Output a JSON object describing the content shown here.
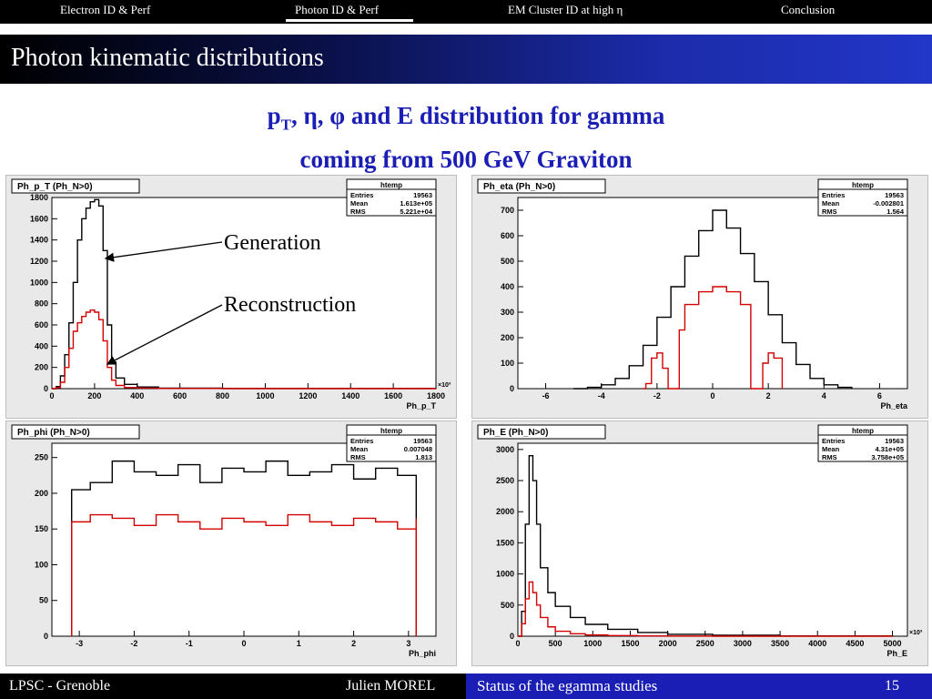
{
  "nav": {
    "items": [
      "Electron ID & Perf",
      "Photon ID & Perf",
      "EM Cluster ID at high η",
      "Conclusion"
    ],
    "active_index": 1
  },
  "slide": {
    "title": "Photon kinematic distributions",
    "heading_line1_prefix": "p",
    "heading_line1_sub": "T",
    "heading_line1_suffix": ", η, φ and E distribution for gamma",
    "heading_line2": "coming from 500 GeV Graviton"
  },
  "annotations": {
    "generation": "Generation",
    "reconstruction": "Reconstruction"
  },
  "footer": {
    "lab": "LPSC - Grenoble",
    "author": "Julien MOREL",
    "talk": "Status of the egamma studies",
    "page": "15"
  },
  "colors": {
    "accent": "#1b1eb5",
    "generation": "#000000",
    "reconstruction": "#d40000",
    "panel_bg": "#e9e9e9"
  },
  "chart_data": [
    {
      "type": "line",
      "title": "Ph_p_T (Ph_N>0)",
      "xlabel": "Ph_p_T",
      "x_exponent": "×10³",
      "stats": {
        "name": "htemp",
        "Entries": "19563",
        "Mean": "1.613e+05",
        "RMS": "5.221e+04"
      },
      "xlim": [
        0,
        1800
      ],
      "ylim": [
        0,
        1800
      ],
      "xticks": [
        0,
        200,
        400,
        600,
        800,
        1000,
        1200,
        1400,
        1600,
        1800
      ],
      "yticks": [
        0,
        200,
        400,
        600,
        800,
        1000,
        1200,
        1400,
        1600,
        1800
      ],
      "series": [
        {
          "color": "black",
          "x": [
            0,
            20,
            40,
            60,
            80,
            100,
            120,
            140,
            160,
            180,
            200,
            220,
            240,
            260,
            280,
            300,
            340,
            400,
            500,
            800,
            1800
          ],
          "values": [
            0,
            20,
            120,
            320,
            620,
            1000,
            1400,
            1600,
            1700,
            1760,
            1780,
            1720,
            1300,
            600,
            250,
            100,
            40,
            15,
            5,
            2,
            0
          ]
        },
        {
          "color": "red",
          "x": [
            0,
            20,
            40,
            60,
            80,
            100,
            120,
            140,
            160,
            180,
            200,
            220,
            240,
            260,
            280,
            300,
            340,
            400,
            500,
            800,
            1800
          ],
          "values": [
            0,
            10,
            60,
            200,
            380,
            540,
            620,
            680,
            720,
            740,
            720,
            650,
            450,
            200,
            80,
            30,
            10,
            5,
            2,
            0,
            0
          ]
        }
      ]
    },
    {
      "type": "line",
      "title": "Ph_eta (Ph_N>0)",
      "xlabel": "Ph_eta",
      "stats": {
        "name": "htemp",
        "Entries": "19563",
        "Mean": "-0.002801",
        "RMS": "1.564"
      },
      "xlim": [
        -7,
        7
      ],
      "ylim": [
        0,
        750
      ],
      "xticks": [
        -6,
        -4,
        -2,
        0,
        2,
        4,
        6
      ],
      "yticks": [
        0,
        100,
        200,
        300,
        400,
        500,
        600,
        700
      ],
      "series": [
        {
          "color": "black",
          "x": [
            -5,
            -4.5,
            -4,
            -3.5,
            -3,
            -2.5,
            -2,
            -1.5,
            -1,
            -0.5,
            0,
            0.5,
            1,
            1.5,
            2,
            2.5,
            3,
            3.5,
            4,
            4.5,
            5
          ],
          "values": [
            0,
            5,
            15,
            40,
            90,
            170,
            280,
            400,
            520,
            620,
            700,
            630,
            530,
            420,
            290,
            180,
            95,
            40,
            15,
            5,
            0
          ]
        },
        {
          "color": "red",
          "x": [
            -2.5,
            -2.4,
            -2.2,
            -2,
            -1.8,
            -1.6,
            -1.4,
            -1.37,
            -1.2,
            -1,
            -0.5,
            0,
            0.5,
            1,
            1.37,
            1.4,
            1.6,
            1.8,
            2,
            2.2,
            2.5
          ],
          "values": [
            0,
            20,
            120,
            140,
            80,
            0,
            0,
            0,
            230,
            330,
            380,
            400,
            380,
            330,
            0,
            0,
            0,
            100,
            140,
            120,
            0
          ]
        }
      ]
    },
    {
      "type": "line",
      "title": "Ph_phi (Ph_N>0)",
      "xlabel": "Ph_phi",
      "stats": {
        "name": "htemp",
        "Entries": "19563",
        "Mean": "0.007048",
        "RMS": "1.813"
      },
      "xlim": [
        -3.5,
        3.5
      ],
      "ylim": [
        0,
        270
      ],
      "xticks": [
        -3,
        -2,
        -1,
        0,
        1,
        2,
        3
      ],
      "yticks": [
        0,
        50,
        100,
        150,
        200,
        250
      ],
      "series": [
        {
          "color": "black",
          "x": [
            -3.14,
            -2.8,
            -2.4,
            -2,
            -1.6,
            -1.2,
            -0.8,
            -0.4,
            0,
            0.4,
            0.8,
            1.2,
            1.6,
            2,
            2.4,
            2.8,
            3.14
          ],
          "values": [
            205,
            215,
            245,
            230,
            225,
            240,
            215,
            235,
            230,
            245,
            225,
            230,
            240,
            220,
            235,
            225,
            210
          ]
        },
        {
          "color": "red",
          "x": [
            -3.14,
            -2.8,
            -2.4,
            -2,
            -1.6,
            -1.2,
            -0.8,
            -0.4,
            0,
            0.4,
            0.8,
            1.2,
            1.6,
            2,
            2.4,
            2.8,
            3.14
          ],
          "values": [
            160,
            170,
            165,
            155,
            170,
            160,
            150,
            165,
            160,
            155,
            170,
            160,
            155,
            165,
            160,
            150,
            165
          ]
        }
      ]
    },
    {
      "type": "line",
      "title": "Ph_E (Ph_N>0)",
      "xlabel": "Ph_E",
      "x_exponent": "×10³",
      "stats": {
        "name": "htemp",
        "Entries": "19563",
        "Mean": "4.31e+05",
        "RMS": "3.758e+05"
      },
      "xlim": [
        0,
        5200
      ],
      "ylim": [
        0,
        3100
      ],
      "xticks": [
        0,
        500,
        1000,
        1500,
        2000,
        2500,
        3000,
        3500,
        4000,
        4500,
        5000
      ],
      "yticks": [
        0,
        500,
        1000,
        1500,
        2000,
        2500,
        3000
      ],
      "series": [
        {
          "color": "black",
          "x": [
            0,
            50,
            100,
            150,
            200,
            250,
            300,
            400,
            500,
            700,
            900,
            1200,
            1600,
            2000,
            2600,
            3500,
            5000
          ],
          "values": [
            0,
            400,
            1800,
            2900,
            2500,
            1800,
            1100,
            700,
            480,
            300,
            190,
            110,
            60,
            30,
            15,
            5,
            0
          ]
        },
        {
          "color": "red",
          "x": [
            0,
            50,
            100,
            150,
            200,
            250,
            300,
            400,
            500,
            700,
            900,
            1200,
            1600,
            2000,
            2600,
            3500,
            5000
          ],
          "values": [
            0,
            200,
            600,
            870,
            700,
            500,
            300,
            150,
            80,
            40,
            20,
            10,
            5,
            2,
            0,
            0,
            0
          ]
        }
      ]
    }
  ]
}
